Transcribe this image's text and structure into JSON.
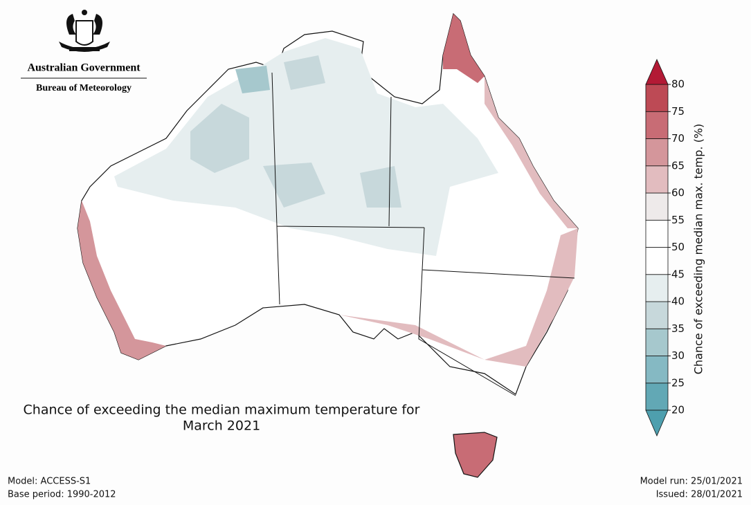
{
  "header": {
    "government": "Australian Government",
    "bureau": "Bureau of Meteorology"
  },
  "title_lines": [
    "Chance of exceeding the median maximum temperature for",
    "March 2021"
  ],
  "colorbar": {
    "label": "Chance of exceeding median max. temp. (%)",
    "ticks": [
      20,
      25,
      30,
      35,
      40,
      45,
      50,
      55,
      60,
      65,
      70,
      75,
      80
    ],
    "colors": [
      "#62a8b5",
      "#85b9c3",
      "#a6c8cd",
      "#c7d8db",
      "#e6eeef",
      "#ffffff",
      "#ffffff",
      "#eeeaea",
      "#e2bcbf",
      "#d4969b",
      "#c86c75",
      "#bd4a55"
    ],
    "under_color": "#4e9fae",
    "over_color": "#b31a35"
  },
  "footer": {
    "model": "Model: ACCESS-S1",
    "base_period": "Base period: 1990-2012",
    "model_run": "Model run: 25/01/2021",
    "issued": "Issued: 28/01/2021"
  }
}
